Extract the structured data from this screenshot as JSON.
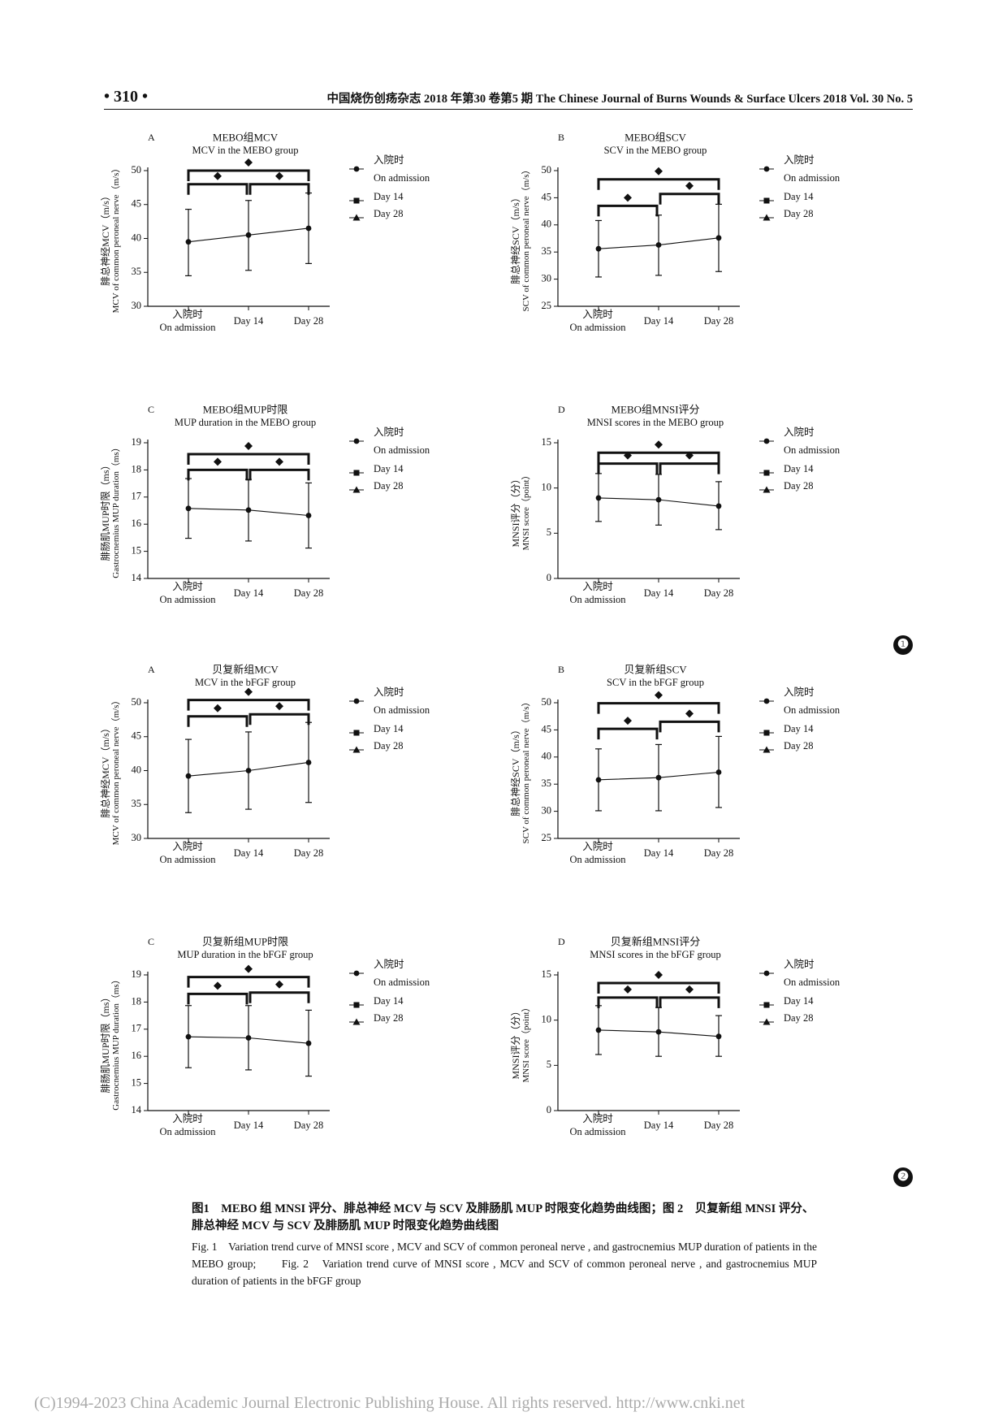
{
  "header": {
    "page_number": "• 310 •",
    "journal": "中国烧伤创疡杂志 2018 年第30 卷第5 期   The Chinese Journal of Burns Wounds & Surface Ulcers 2018 Vol. 30 No. 5"
  },
  "figure_badges": [
    "❶",
    "❷"
  ],
  "chart_data": [
    {
      "type": "line",
      "letter": "A",
      "title": "MEBO组MCV",
      "subtitle": "MCV in the MEBO group",
      "ylabel_cn": "腓总神经MCV（m/s）",
      "ylabel_en": "MCV of common peroneal nerve（m/s）",
      "ylim": [
        30,
        50
      ],
      "yticks": [
        30,
        35,
        40,
        45,
        50
      ],
      "categories": [
        [
          "入院时",
          "On admission"
        ],
        [
          "Day 14"
        ],
        [
          "Day 28"
        ]
      ],
      "values": [
        39.5,
        40.5,
        41.5
      ],
      "err_upper": [
        44.3,
        45.6,
        46.7
      ],
      "err_lower": [
        34.5,
        35.3,
        36.3
      ],
      "significance": [
        {
          "from": 0,
          "to": 1,
          "y": 48
        },
        {
          "from": 1,
          "to": 2,
          "y": 48
        },
        {
          "from": 0,
          "to": 2,
          "y": 50
        }
      ],
      "legend": [
        {
          "marker": "circle",
          "labels": [
            "入院时",
            "On admission"
          ]
        },
        {
          "marker": "square",
          "labels": [
            "Day 14"
          ]
        },
        {
          "marker": "triangle",
          "labels": [
            "Day 28"
          ]
        }
      ]
    },
    {
      "type": "line",
      "letter": "B",
      "title": "MEBO组SCV",
      "subtitle": "SCV in the MEBO group",
      "ylabel_cn": "腓总神经SCV（m/s）",
      "ylabel_en": "SCV of common peroneal nerve（m/s）",
      "ylim": [
        25,
        50
      ],
      "yticks": [
        25,
        30,
        35,
        40,
        45,
        50
      ],
      "categories": [
        [
          "入院时",
          "On admission"
        ],
        [
          "Day 14"
        ],
        [
          "Day 28"
        ]
      ],
      "values": [
        35.6,
        36.3,
        37.6
      ],
      "err_upper": [
        40.8,
        41.8,
        43.8
      ],
      "err_lower": [
        30.4,
        30.7,
        31.4
      ],
      "significance": [
        {
          "from": 0,
          "to": 1,
          "y": 43.5
        },
        {
          "from": 1,
          "to": 2,
          "y": 45.7
        },
        {
          "from": 0,
          "to": 2,
          "y": 48.4
        }
      ],
      "legend": [
        {
          "marker": "circle",
          "labels": [
            "入院时",
            "On admission"
          ]
        },
        {
          "marker": "square",
          "labels": [
            "Day 14"
          ]
        },
        {
          "marker": "triangle",
          "labels": [
            "Day 28"
          ]
        }
      ]
    },
    {
      "type": "line",
      "letter": "C",
      "title": "MEBO组MUP时限",
      "subtitle": "MUP duration in the MEBO group",
      "ylabel_cn": "腓肠肌MUP时限（ms）",
      "ylabel_en": "Gastrocnemius MUP duration（ms）",
      "ylim": [
        14,
        19
      ],
      "yticks": [
        14,
        15,
        16,
        17,
        18,
        19
      ],
      "categories": [
        [
          "入院时",
          "On admission"
        ],
        [
          "Day 14"
        ],
        [
          "Day 28"
        ]
      ],
      "values": [
        16.58,
        16.52,
        16.32
      ],
      "err_upper": [
        17.68,
        17.65,
        17.52
      ],
      "err_lower": [
        15.48,
        15.38,
        15.12
      ],
      "significance": [
        {
          "from": 0,
          "to": 1,
          "y": 18.0
        },
        {
          "from": 1,
          "to": 2,
          "y": 18.0
        },
        {
          "from": 0,
          "to": 2,
          "y": 18.58
        }
      ],
      "legend": [
        {
          "marker": "circle",
          "labels": [
            "入院时",
            "On admission"
          ]
        },
        {
          "marker": "square",
          "labels": [
            "Day 14"
          ]
        },
        {
          "marker": "triangle",
          "labels": [
            "Day 28"
          ]
        }
      ]
    },
    {
      "type": "line",
      "letter": "D",
      "title": "MEBO组MNSI评分",
      "subtitle": "MNSI scores in the MEBO group",
      "ylabel_cn": "MNSI评分（分）",
      "ylabel_en": "MNSI score（point）",
      "ylim": [
        0,
        15
      ],
      "yticks": [
        0,
        5,
        10,
        15
      ],
      "categories": [
        [
          "入院时",
          "On admission"
        ],
        [
          "Day 14"
        ],
        [
          "Day 28"
        ]
      ],
      "values": [
        8.9,
        8.7,
        8.0
      ],
      "err_upper": [
        11.6,
        11.5,
        10.7
      ],
      "err_lower": [
        6.3,
        5.9,
        5.4
      ],
      "significance": [
        {
          "from": 0,
          "to": 1,
          "y": 12.7
        },
        {
          "from": 1,
          "to": 2,
          "y": 12.7
        },
        {
          "from": 0,
          "to": 2,
          "y": 13.9
        }
      ],
      "legend": [
        {
          "marker": "circle",
          "labels": [
            "入院时",
            "On admission"
          ]
        },
        {
          "marker": "square",
          "labels": [
            "Day 14"
          ]
        },
        {
          "marker": "triangle",
          "labels": [
            "Day 28"
          ]
        }
      ]
    },
    {
      "type": "line",
      "letter": "A",
      "title": "贝复新组MCV",
      "subtitle": "MCV in the bFGF  group",
      "ylabel_cn": "腓总神经MCV（m/s）",
      "ylabel_en": "MCV of common peroneal nerve（m/s）",
      "ylim": [
        30,
        50
      ],
      "yticks": [
        30,
        35,
        40,
        45,
        50
      ],
      "categories": [
        [
          "入院时",
          "On admission"
        ],
        [
          "Day 14"
        ],
        [
          "Day 28"
        ]
      ],
      "values": [
        39.2,
        40.0,
        41.2
      ],
      "err_upper": [
        44.6,
        45.7,
        47.1
      ],
      "err_lower": [
        33.8,
        34.3,
        35.3
      ],
      "significance": [
        {
          "from": 0,
          "to": 1,
          "y": 48.0
        },
        {
          "from": 1,
          "to": 2,
          "y": 48.3
        },
        {
          "from": 0,
          "to": 2,
          "y": 50.4
        }
      ],
      "legend": [
        {
          "marker": "circle",
          "labels": [
            "入院时",
            "On admission"
          ]
        },
        {
          "marker": "square",
          "labels": [
            "Day 14"
          ]
        },
        {
          "marker": "triangle",
          "labels": [
            "Day 28"
          ]
        }
      ]
    },
    {
      "type": "line",
      "letter": "B",
      "title": "贝复新组SCV",
      "subtitle": "SCV in the bFGF  group",
      "ylabel_cn": "腓总神经SCV（m/s）",
      "ylabel_en": "SCV of common peroneal nerve（m/s）",
      "ylim": [
        25,
        50
      ],
      "yticks": [
        25,
        30,
        35,
        40,
        45,
        50
      ],
      "categories": [
        [
          "入院时",
          "On admission"
        ],
        [
          "Day 14"
        ],
        [
          "Day 28"
        ]
      ],
      "values": [
        35.8,
        36.2,
        37.2
      ],
      "err_upper": [
        41.5,
        42.3,
        43.8
      ],
      "err_lower": [
        30.1,
        30.1,
        30.7
      ],
      "significance": [
        {
          "from": 0,
          "to": 1,
          "y": 45.2
        },
        {
          "from": 1,
          "to": 2,
          "y": 46.5
        },
        {
          "from": 0,
          "to": 2,
          "y": 49.9
        }
      ],
      "legend": [
        {
          "marker": "circle",
          "labels": [
            "入院时",
            "On admission"
          ]
        },
        {
          "marker": "square",
          "labels": [
            "Day 14"
          ]
        },
        {
          "marker": "triangle",
          "labels": [
            "Day 28"
          ]
        }
      ]
    },
    {
      "type": "line",
      "letter": "C",
      "title": "贝复新组MUP时限",
      "subtitle": "MUP duration in the bFGF group",
      "ylabel_cn": "腓肠肌MUP时限（ms）",
      "ylabel_en": "Gastrocnemius MUP duration（ms）",
      "ylim": [
        14,
        19
      ],
      "yticks": [
        14,
        15,
        16,
        17,
        18,
        19
      ],
      "categories": [
        [
          "入院时",
          "On admission"
        ],
        [
          "Day 14"
        ],
        [
          "Day 28"
        ]
      ],
      "values": [
        16.72,
        16.68,
        16.48
      ],
      "err_upper": [
        17.87,
        17.87,
        17.7
      ],
      "err_lower": [
        15.58,
        15.5,
        15.27
      ],
      "significance": [
        {
          "from": 0,
          "to": 1,
          "y": 18.3
        },
        {
          "from": 1,
          "to": 2,
          "y": 18.35
        },
        {
          "from": 0,
          "to": 2,
          "y": 18.92
        }
      ],
      "legend": [
        {
          "marker": "circle",
          "labels": [
            "入院时",
            "On admission"
          ]
        },
        {
          "marker": "square",
          "labels": [
            "Day 14"
          ]
        },
        {
          "marker": "triangle",
          "labels": [
            "Day 28"
          ]
        }
      ]
    },
    {
      "type": "line",
      "letter": "D",
      "title": "贝复新组MNSI评分",
      "subtitle": "MNSI scores in the bFGF group",
      "ylabel_cn": "MNSI评分（分）",
      "ylabel_en": "MNSI score（point）",
      "ylim": [
        0,
        15
      ],
      "yticks": [
        0,
        5,
        10,
        15
      ],
      "categories": [
        [
          "入院时",
          "On admission"
        ],
        [
          "Day 14"
        ],
        [
          "Day 28"
        ]
      ],
      "values": [
        8.9,
        8.7,
        8.2
      ],
      "err_upper": [
        11.6,
        11.4,
        10.5
      ],
      "err_lower": [
        6.2,
        6.0,
        6.0
      ],
      "significance": [
        {
          "from": 0,
          "to": 1,
          "y": 12.5
        },
        {
          "from": 1,
          "to": 2,
          "y": 12.5
        },
        {
          "from": 0,
          "to": 2,
          "y": 14.1
        }
      ],
      "legend": [
        {
          "marker": "circle",
          "labels": [
            "入院时",
            "On admission"
          ]
        },
        {
          "marker": "square",
          "labels": [
            "Day 14"
          ]
        },
        {
          "marker": "triangle",
          "labels": [
            "Day 28"
          ]
        }
      ]
    }
  ],
  "caption": {
    "cn": "图1　MEBO 组 MNSI 评分、腓总神经 MCV 与 SCV 及腓肠肌 MUP 时限变化趋势曲线图；图 2　贝复新组 MNSI 评分、腓总神经 MCV 与 SCV 及腓肠肌 MUP 时限变化趋势曲线图",
    "en": "Fig. 1　Variation trend curve of MNSI score , MCV and SCV of common peroneal nerve , and gastrocnemius MUP duration of patients in the MEBO group;　　Fig. 2　Variation trend curve of MNSI score , MCV and SCV of common peroneal nerve , and gastrocnemius MUP duration of patients in the bFGF group"
  },
  "footer": {
    "copyright": "(C)1994-2023 China Academic Journal Electronic Publishing House. All rights reserved.    http://www.cnki.net"
  }
}
